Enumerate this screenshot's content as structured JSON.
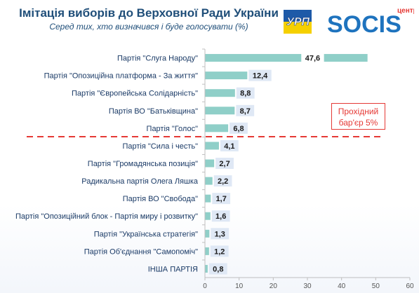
{
  "header": {
    "title": "Імітація виборів до Верховної Ради України",
    "subtitle": "Серед тих, хто визначився і буде голосувати (%)"
  },
  "logos": {
    "left_text": "УРП",
    "right_small": "центр",
    "right_brand": "SOCIS"
  },
  "barrier": {
    "text_line1": "Прохідний",
    "text_line2": "бар'єр 5%",
    "color": "#e53935"
  },
  "colors": {
    "bar": "#8fcfc8",
    "value_box": "#dfe8f5",
    "axis_text": "#555555",
    "title": "#1f4e79"
  },
  "chart_data": {
    "type": "bar",
    "orientation": "horizontal",
    "categories": [
      "Партія \"Слуга Народу\"",
      "Партія \"Опозиційна платформа - За життя\"",
      "Партія \"Європейська Солідарність\"",
      "Партія ВО \"Батьківщина\"",
      "Партія \"Голос\"",
      "Партія \"Сила і честь\"",
      "Партія \"Громадянська позиція\"",
      "Радикальна партія Олега Ляшка",
      "Партія ВО \"Свобода\"",
      "Партія \"Опозиційний блок - Партія миру і розвитку\"",
      "Партія \"Українська стратегія\"",
      "Партія Об'єднання \"Самопоміч\"",
      "ІНША ПАРТІЯ"
    ],
    "values": [
      47.6,
      12.4,
      8.8,
      8.7,
      6.8,
      4.1,
      2.7,
      2.2,
      1.7,
      1.6,
      1.3,
      1.2,
      0.8
    ],
    "value_labels": [
      "47,6",
      "12,4",
      "8,8",
      "8,7",
      "6,8",
      "4,1",
      "2,7",
      "2,2",
      "1,7",
      "1,6",
      "1,3",
      "1,2",
      "0,8"
    ],
    "xlim": [
      0,
      60
    ],
    "x_ticks": [
      0,
      10,
      20,
      30,
      40,
      50,
      60
    ],
    "threshold_value": 5,
    "grid": false
  }
}
